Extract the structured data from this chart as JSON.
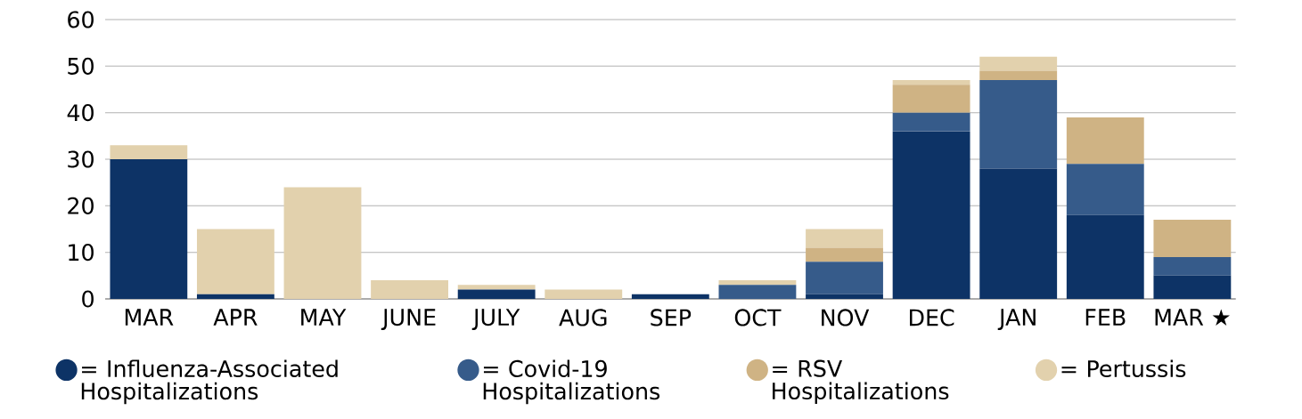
{
  "chart_data": {
    "type": "bar",
    "stacked": true,
    "categories": [
      "MAR",
      "APR",
      "MAY",
      "JUNE",
      "JULY",
      "AUG",
      "SEP",
      "OCT",
      "NOV",
      "DEC",
      "JAN",
      "FEB",
      "MAR ★"
    ],
    "series": [
      {
        "name": "= Influenza-Associated Hospitalizations",
        "color": "#0d3366",
        "values": [
          30,
          1,
          0,
          0,
          2,
          0,
          1,
          0,
          1,
          36,
          28,
          18,
          5
        ]
      },
      {
        "name": "= Covid-19 Hospitalizations",
        "color": "#365b8a",
        "values": [
          0,
          0,
          0,
          0,
          0,
          0,
          0,
          3,
          7,
          4,
          19,
          11,
          4
        ]
      },
      {
        "name": "= RSV Hospitalizations",
        "color": "#cfb384",
        "values": [
          0,
          0,
          0,
          0,
          0,
          0,
          0,
          0,
          3,
          6,
          2,
          10,
          8
        ]
      },
      {
        "name": "= Pertussis",
        "color": "#e2d1ad",
        "values": [
          3,
          14,
          24,
          4,
          1,
          2,
          0,
          1,
          4,
          1,
          3,
          0,
          0
        ]
      }
    ],
    "ylim": [
      0,
      60
    ],
    "yticks": [
      0,
      10,
      20,
      30,
      40,
      50,
      60
    ],
    "grid": "y",
    "legend": "bottom"
  }
}
